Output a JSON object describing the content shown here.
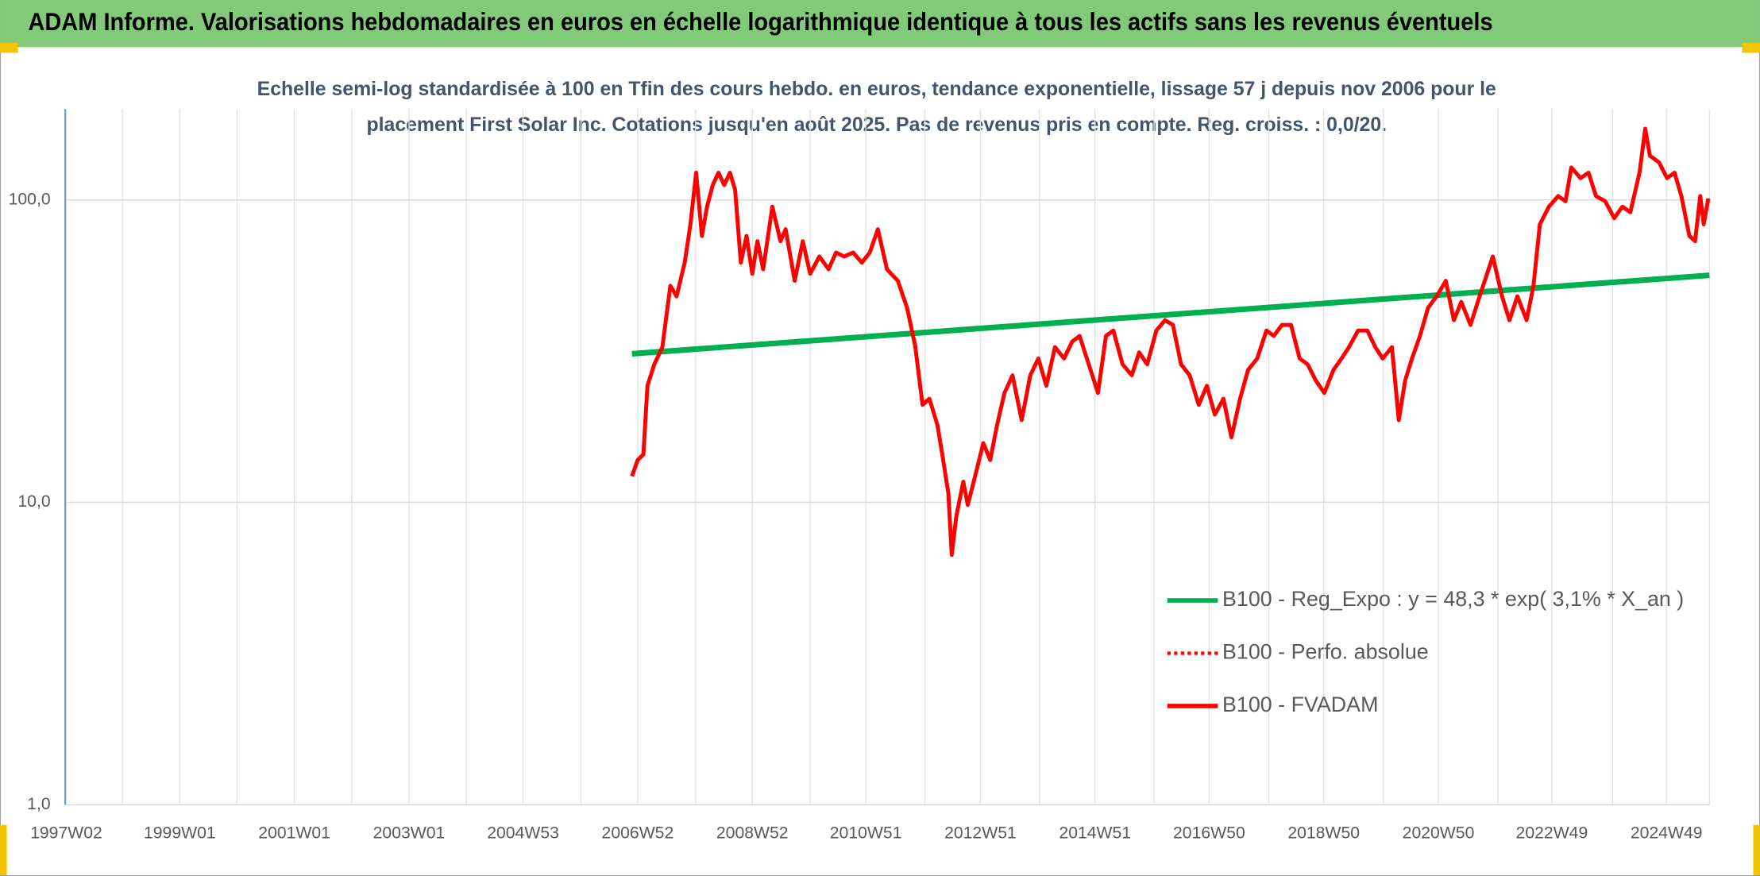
{
  "chart_data": {
    "type": "line",
    "title": "ADAM Informe. Valorisations hebdomadaires en euros en échelle logarithmique identique à tous les actifs sans les revenus éventuels",
    "subtitle": [
      "Echelle semi-log standardisée à 100 en Tfin des cours hebdo. en euros, tendance exponentielle, lissage 57 j depuis nov 2006 pour le",
      "placement First Solar Inc. Cotations jusqu'en août 2025. Pas de revenus pris en compte. Reg. croiss. : 0,0/20."
    ],
    "ylog": true,
    "ylim": [
      1,
      200
    ],
    "yticks": [
      {
        "value": 1,
        "label": "1,0"
      },
      {
        "value": 10,
        "label": "10,0"
      },
      {
        "value": 100,
        "label": "100,0"
      }
    ],
    "xlim": [
      1997.0,
      2025.69
    ],
    "xticks": [
      {
        "value": 1997.02,
        "label": "1997W02"
      },
      {
        "value": 1999.0,
        "label": "1999W01"
      },
      {
        "value": 2001.0,
        "label": "2001W01"
      },
      {
        "value": 2003.0,
        "label": "2003W01"
      },
      {
        "value": 2004.99,
        "label": "2004W53"
      },
      {
        "value": 2006.99,
        "label": "2006W52"
      },
      {
        "value": 2008.99,
        "label": "2008W52"
      },
      {
        "value": 2010.97,
        "label": "2010W51"
      },
      {
        "value": 2012.97,
        "label": "2012W51"
      },
      {
        "value": 2014.97,
        "label": "2014W51"
      },
      {
        "value": 2016.96,
        "label": "2016W50"
      },
      {
        "value": 2018.96,
        "label": "2018W50"
      },
      {
        "value": 2020.96,
        "label": "2020W50"
      },
      {
        "value": 2022.94,
        "label": "2022W49"
      },
      {
        "value": 2024.94,
        "label": "2024W49"
      }
    ],
    "xminorticks": [
      1998.0,
      2000.0,
      2002.0,
      2004.0,
      2006.0,
      2008.0,
      2010.0,
      2012.0,
      2014.0,
      2016.0,
      2018.0,
      2020.0,
      2022.0,
      2024.0,
      2025.69
    ],
    "grid": true,
    "legend": "lower right",
    "series": [
      {
        "name": "B100 - Reg_Expo : y = 48,3 * exp( 3,1% *  X_an )",
        "color": "#00b050",
        "style": "solid",
        "x": [
          2006.89,
          2025.69
        ],
        "values": [
          31.0,
          56.3
        ]
      },
      {
        "name": "B100 - Perfo. absolue",
        "color": "#ff0000",
        "style": "dotted",
        "x": [],
        "values": []
      },
      {
        "name": "B100 - FVADAM",
        "color": "#ff0000",
        "style": "solid",
        "x": [
          2006.89,
          2006.99,
          2007.09,
          2007.16,
          2007.28,
          2007.42,
          2007.56,
          2007.67,
          2007.81,
          2007.91,
          2008.01,
          2008.11,
          2008.2,
          2008.3,
          2008.4,
          2008.5,
          2008.6,
          2008.69,
          2008.79,
          2008.89,
          2008.99,
          2009.08,
          2009.18,
          2009.34,
          2009.48,
          2009.57,
          2009.73,
          2009.87,
          2010.0,
          2010.16,
          2010.32,
          2010.45,
          2010.59,
          2010.75,
          2010.9,
          2011.04,
          2011.18,
          2011.34,
          2011.53,
          2011.69,
          2011.83,
          2011.96,
          2012.08,
          2012.22,
          2012.32,
          2012.41,
          2012.47,
          2012.55,
          2012.67,
          2012.75,
          2012.9,
          2013.02,
          2013.14,
          2013.26,
          2013.39,
          2013.53,
          2013.69,
          2013.84,
          2013.98,
          2014.12,
          2014.27,
          2014.43,
          2014.57,
          2014.7,
          2014.86,
          2015.02,
          2015.16,
          2015.29,
          2015.45,
          2015.61,
          2015.74,
          2015.88,
          2016.04,
          2016.19,
          2016.33,
          2016.47,
          2016.62,
          2016.78,
          2016.92,
          2017.06,
          2017.21,
          2017.35,
          2017.5,
          2017.64,
          2017.8,
          2017.96,
          2018.09,
          2018.23,
          2018.39,
          2018.54,
          2018.68,
          2018.82,
          2018.97,
          2019.13,
          2019.27,
          2019.4,
          2019.56,
          2019.72,
          2019.86,
          2019.99,
          2020.15,
          2020.27,
          2020.38,
          2020.5,
          2020.64,
          2020.78,
          2020.93,
          2021.09,
          2021.23,
          2021.36,
          2021.52,
          2021.68,
          2021.81,
          2021.91,
          2022.07,
          2022.2,
          2022.34,
          2022.5,
          2022.62,
          2022.73,
          2022.89,
          2023.05,
          2023.18,
          2023.28,
          2023.44,
          2023.58,
          2023.71,
          2023.87,
          2024.03,
          2024.17,
          2024.31,
          2024.47,
          2024.57,
          2024.65,
          2024.81,
          2024.95,
          2025.08,
          2025.2,
          2025.34,
          2025.44,
          2025.53,
          2025.59,
          2025.67
        ],
        "values": [
          12.2,
          13.8,
          14.4,
          24.3,
          28.6,
          32.6,
          52,
          48,
          62,
          83,
          123,
          76,
          95,
          112,
          123,
          112,
          123,
          108,
          62,
          76,
          57,
          73,
          59,
          95,
          73,
          80,
          54,
          73,
          57,
          65,
          59,
          67,
          65,
          67,
          62,
          67,
          80,
          59,
          54,
          44,
          33,
          21,
          22,
          18,
          13.8,
          10.7,
          6.7,
          9.0,
          11.7,
          9.8,
          12.7,
          15.7,
          13.8,
          18,
          23,
          26.3,
          18.7,
          26.3,
          29.9,
          24.3,
          32.6,
          29.9,
          34,
          35.5,
          28.6,
          23,
          35.5,
          37,
          28.6,
          26.3,
          31.3,
          28.6,
          37,
          40,
          38.6,
          28.6,
          26.3,
          21,
          24.3,
          19.5,
          22,
          16.4,
          22,
          27.4,
          29.9,
          37,
          35.5,
          38.6,
          38.6,
          29.9,
          28.6,
          25.3,
          23,
          27.4,
          29.9,
          32.6,
          37,
          37,
          32.6,
          29.9,
          32.6,
          18.7,
          25.3,
          29.9,
          35.5,
          44,
          48,
          54,
          40,
          46,
          38.6,
          48,
          57,
          65,
          48,
          40,
          48,
          40,
          52,
          83,
          95,
          103,
          99,
          128,
          118,
          123,
          103,
          99,
          87,
          95,
          91,
          123,
          172,
          140,
          133,
          118,
          123,
          103,
          76,
          73,
          103,
          83,
          101
        ]
      }
    ]
  }
}
